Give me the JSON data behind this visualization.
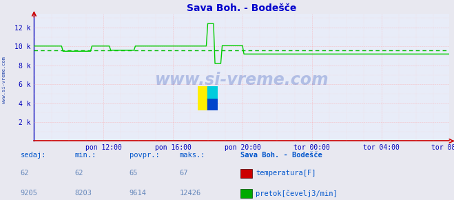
{
  "title": "Sava Boh. - Bodešče",
  "title_color": "#0000cc",
  "bg_color": "#e8e8f0",
  "plot_bg_color": "#e8ecf8",
  "ylim": [
    0,
    13440
  ],
  "yticks": [
    0,
    2000,
    4000,
    6000,
    8000,
    10000,
    12000
  ],
  "ytick_labels": [
    "",
    "2 k",
    "4 k",
    "6 k",
    "8 k",
    "10 k",
    "12 k"
  ],
  "xtick_labels": [
    "pon 12:00",
    "pon 16:00",
    "pon 20:00",
    "tor 00:00",
    "tor 04:00",
    "tor 08:00"
  ],
  "avg_flow": 9614,
  "avg_line_color": "#00bb00",
  "flow_line_color": "#00cc00",
  "temp_line_color": "#cc0000",
  "watermark": "www.si-vreme.com",
  "watermark_color": "#2244aa",
  "sedaj_label": "sedaj:",
  "min_label": "min.:",
  "povpr_label": "povpr.:",
  "maks_label": "maks.:",
  "station_label": "Sava Boh. - Bodešče",
  "temp_sedaj": 62,
  "temp_min": 62,
  "temp_avg": 65,
  "temp_max": 67,
  "flow_sedaj": 9205,
  "flow_min": 8203,
  "flow_avg": 9614,
  "flow_max": 12426,
  "legend_temp": "temperatura[F]",
  "legend_flow": "pretok[čevelj3/min]",
  "n_points": 288,
  "flow_data": [
    10050,
    10050,
    10050,
    10050,
    10050,
    10050,
    10050,
    10050,
    10050,
    10050,
    10050,
    10050,
    10050,
    10050,
    10050,
    10050,
    10050,
    10050,
    10050,
    10050,
    9500,
    9500,
    9500,
    9500,
    9500,
    9500,
    9500,
    9500,
    9500,
    9500,
    9500,
    9500,
    9500,
    9500,
    9500,
    9500,
    9500,
    9500,
    9500,
    9500,
    10050,
    10050,
    10050,
    10050,
    10050,
    10050,
    10050,
    10050,
    10050,
    10050,
    10050,
    10050,
    10050,
    9600,
    9600,
    9600,
    9600,
    9600,
    9600,
    9600,
    9600,
    9600,
    9600,
    9600,
    9600,
    9600,
    9600,
    9600,
    9600,
    9600,
    10050,
    10050,
    10050,
    10050,
    10050,
    10050,
    10050,
    10050,
    10050,
    10050,
    10050,
    10050,
    10050,
    10050,
    10050,
    10050,
    10050,
    10050,
    10050,
    10050,
    10050,
    10050,
    10050,
    10050,
    10050,
    10050,
    10050,
    10050,
    10050,
    10050,
    10050,
    10050,
    10050,
    10050,
    10050,
    10050,
    10050,
    10050,
    10050,
    10050,
    10050,
    10050,
    10050,
    10050,
    10050,
    10050,
    10050,
    10050,
    10050,
    10050,
    12426,
    12426,
    12426,
    12426,
    12426,
    8203,
    8203,
    8203,
    8203,
    8203,
    10100,
    10100,
    10100,
    10100,
    10100,
    10100,
    10100,
    10100,
    10100,
    10100,
    10100,
    10100,
    10100,
    10100,
    10100,
    9205,
    9205,
    9205,
    9205,
    9205,
    9205,
    9205,
    9205,
    9205,
    9205,
    9205,
    9205,
    9205,
    9205,
    9205,
    9205,
    9205,
    9205,
    9205,
    9205,
    9205,
    9205,
    9205,
    9205,
    9205,
    9205,
    9205,
    9205,
    9205,
    9205,
    9205,
    9205,
    9205,
    9205,
    9205,
    9205,
    9205,
    9205,
    9205,
    9205,
    9205,
    9205,
    9205,
    9205,
    9205,
    9205,
    9205,
    9205,
    9205,
    9205,
    9205,
    9205,
    9205,
    9205,
    9205,
    9205,
    9205,
    9205,
    9205,
    9205,
    9205,
    9205,
    9205,
    9205,
    9205,
    9205,
    9205,
    9205,
    9205,
    9205,
    9205,
    9205,
    9205,
    9205,
    9205,
    9205,
    9205,
    9205,
    9205,
    9205,
    9205,
    9205,
    9205,
    9205,
    9205,
    9205,
    9205,
    9205,
    9205,
    9205,
    9205,
    9205,
    9205,
    9205,
    9205,
    9205,
    9205,
    9205,
    9205,
    9205,
    9205,
    9205,
    9205,
    9205,
    9205,
    9205,
    9205,
    9205,
    9205,
    9205,
    9205,
    9205,
    9205,
    9205,
    9205,
    9205,
    9205,
    9205,
    9205,
    9205,
    9205,
    9205,
    9205,
    9205,
    9205,
    9205,
    9205,
    9205,
    9205,
    9205,
    9205,
    9205,
    9205,
    9205,
    9205,
    9205,
    9205,
    9205,
    9205,
    9205,
    9205,
    9205,
    9205
  ],
  "label_color": "#0055cc",
  "val_color": "#6688bb",
  "axis_color": "#0000bb",
  "bottom_border_color": "#cc0000"
}
